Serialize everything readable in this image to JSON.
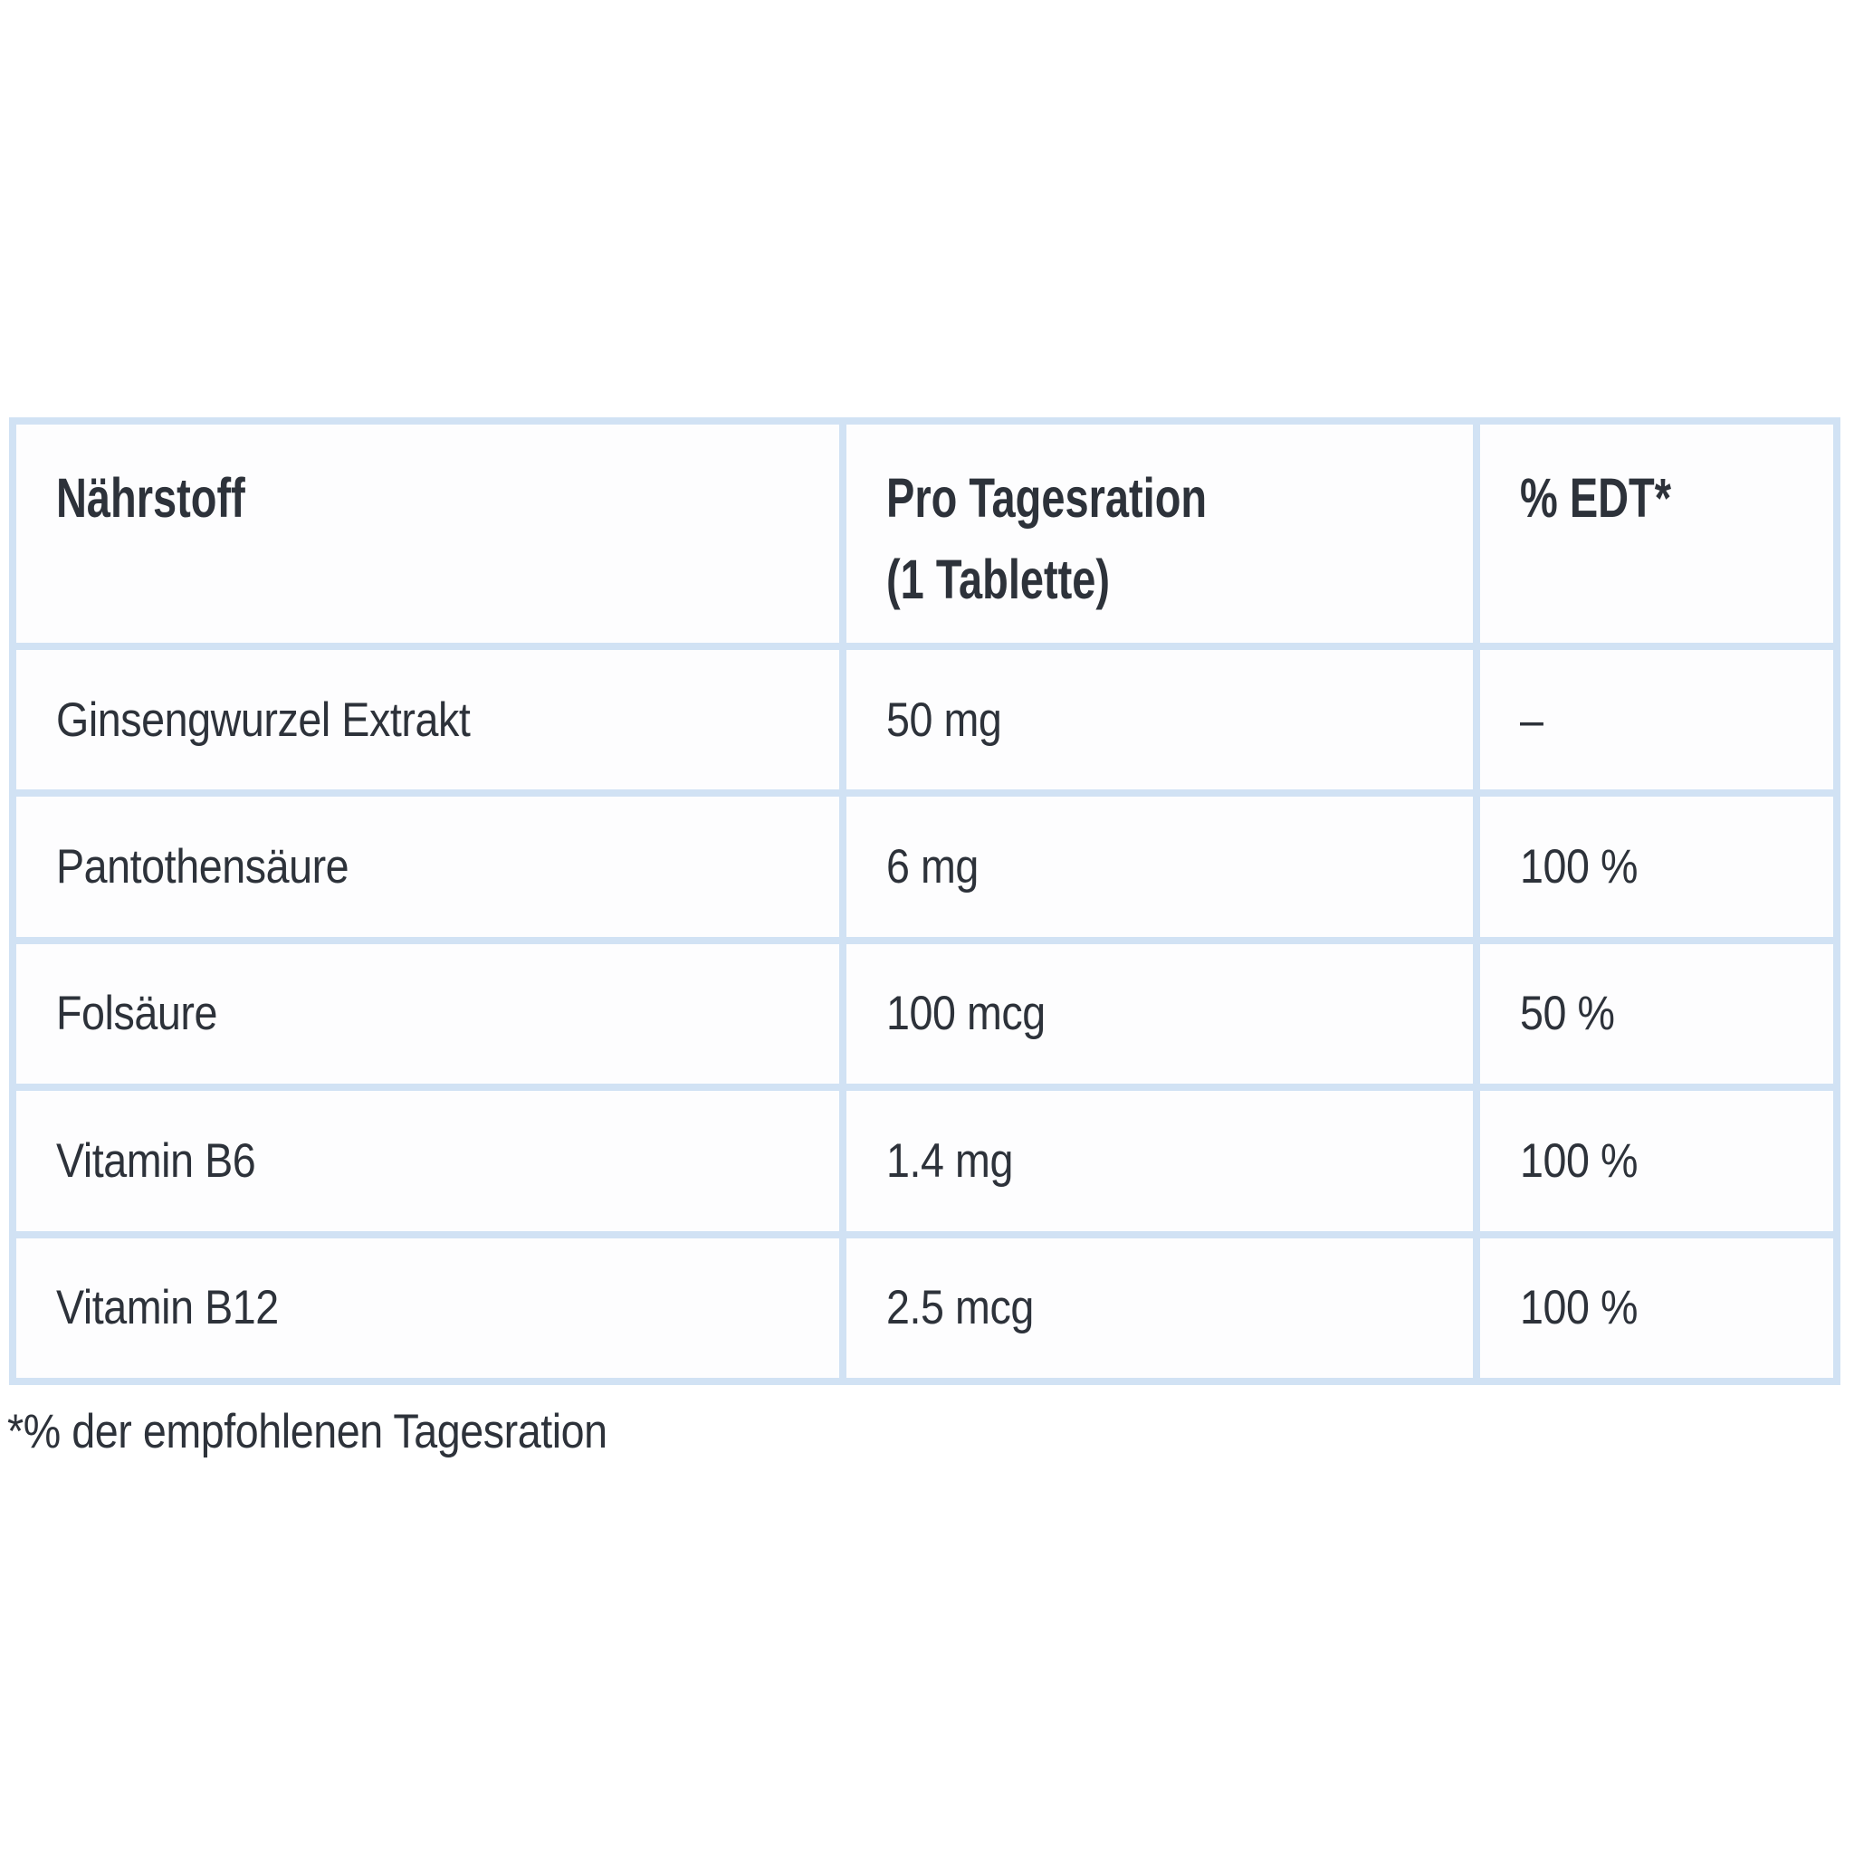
{
  "table": {
    "columns": [
      {
        "label": "Nährstoff"
      },
      {
        "label_line1": "Pro Tagesration",
        "label_line2": "(1 Tablette)"
      },
      {
        "label": "% EDT*"
      }
    ],
    "rows": [
      {
        "nutrient": "Ginsengwurzel Extrakt",
        "per_daily_ration": "50 mg",
        "percent_edt": "–"
      },
      {
        "nutrient": "Pantothensäure",
        "per_daily_ration": "6 mg",
        "percent_edt": "100 %"
      },
      {
        "nutrient": "Folsäure",
        "per_daily_ration": "100 mcg",
        "percent_edt": "50 %"
      },
      {
        "nutrient": "Vitamin B6",
        "per_daily_ration": "1.4 mg",
        "percent_edt": "100 %"
      },
      {
        "nutrient": "Vitamin B12",
        "per_daily_ration": "2.5 mcg",
        "percent_edt": "100 %"
      }
    ],
    "footnote": "*% der empfohlenen Tagesration"
  },
  "colors": {
    "page_background": "#ffffff",
    "table_border": "#d1e2f4",
    "cell_background": "#fdfdfe",
    "text": "#2d323a"
  }
}
